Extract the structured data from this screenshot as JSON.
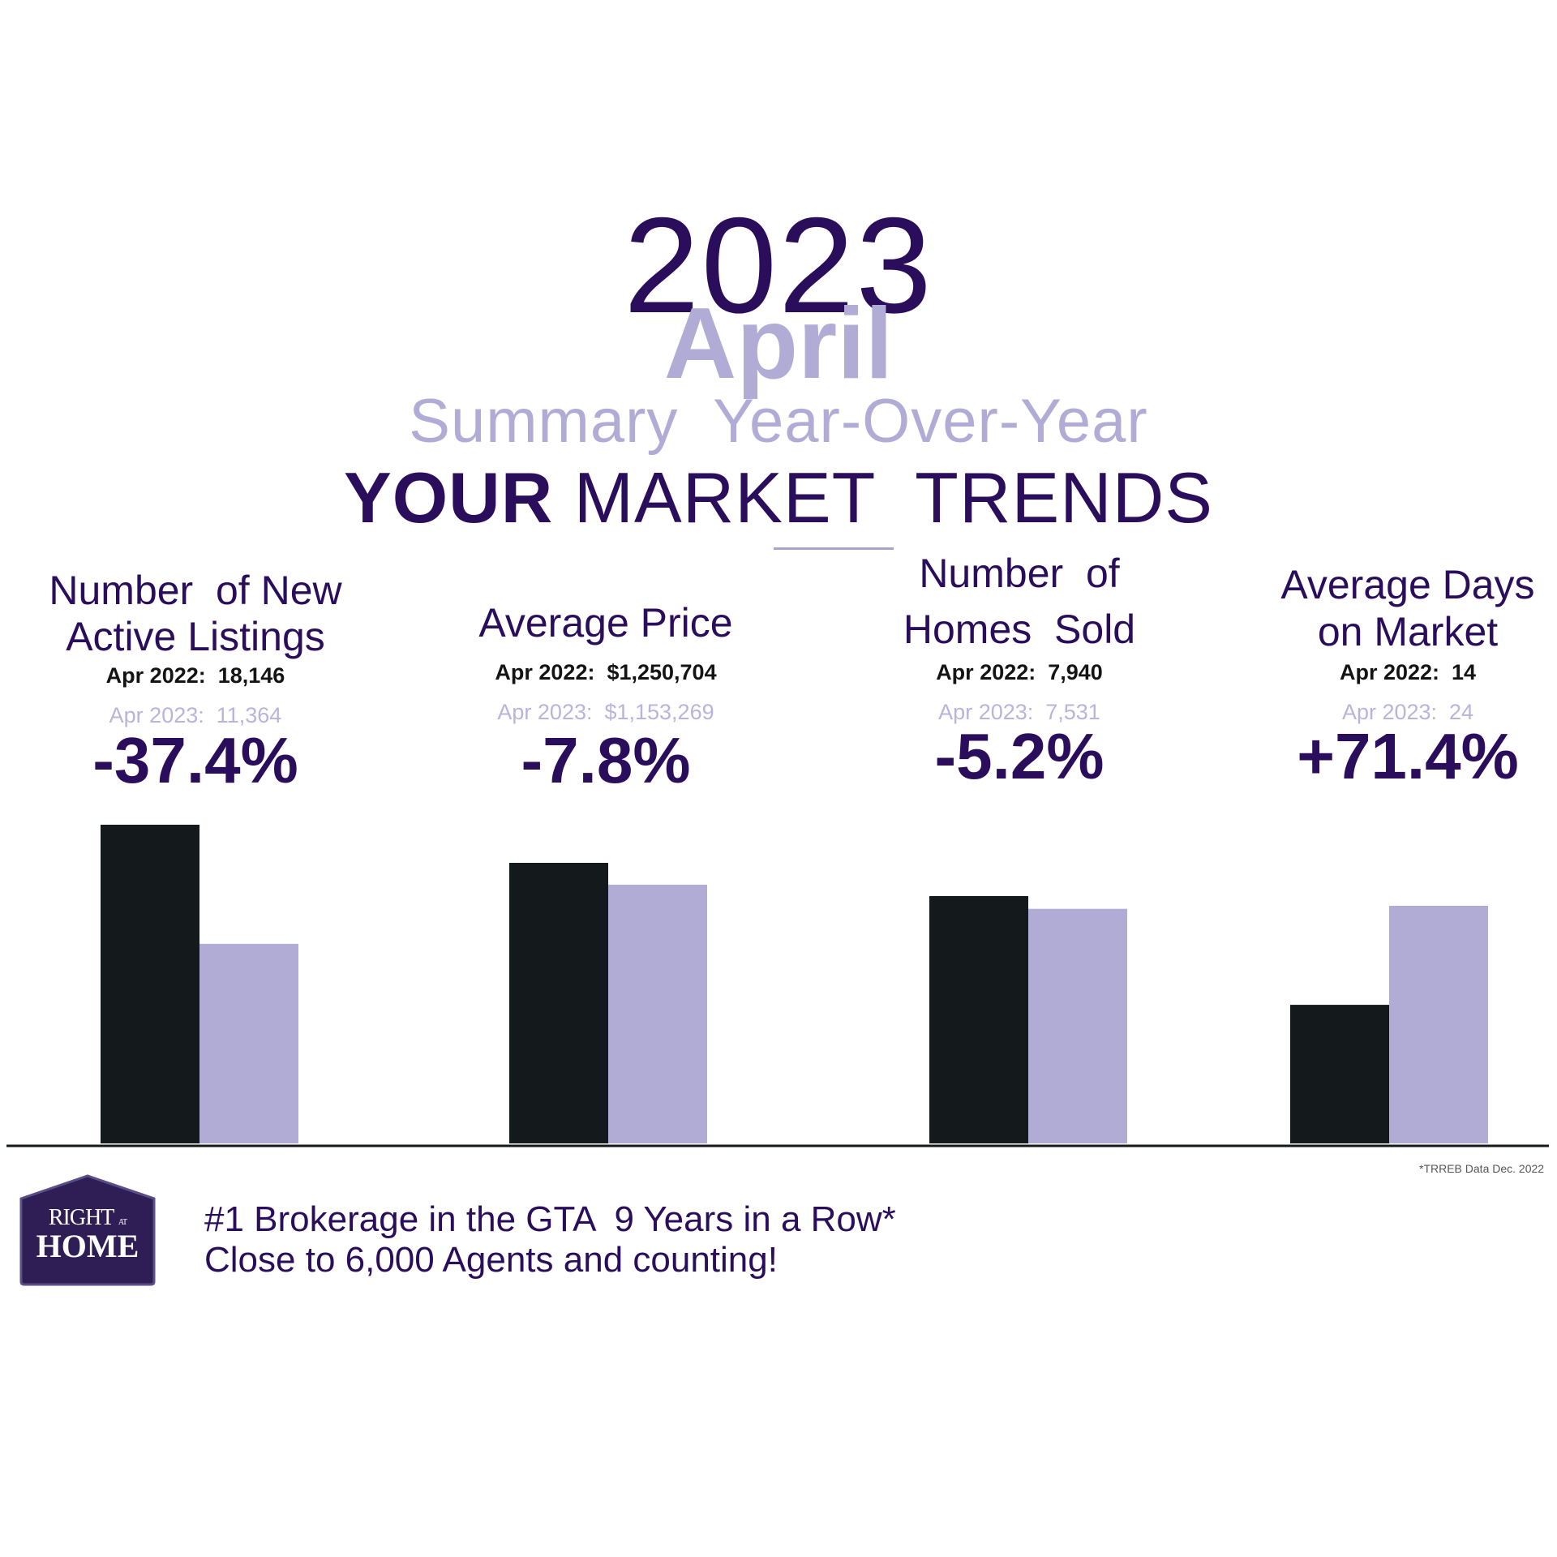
{
  "header": {
    "year": "2023",
    "month": "April",
    "subtitle": "Summary  Year-Over-Year",
    "title_bold": "YOUR",
    "title_regular": " MARKET  TRENDS"
  },
  "colors": {
    "dark_purple": "#2a0e5c",
    "light_purple": "#b1acd6",
    "bar_2022": "#141a1b",
    "bar_2023": "#b1acd6"
  },
  "kpis": [
    {
      "title_line1": "Number  of New",
      "title_line2": "Active Listings",
      "prev_label": "Apr 2022:  18,146",
      "cur_label": "Apr 2023:  11,364",
      "change": "-37.4%"
    },
    {
      "title_line1": "Average Price",
      "title_line2": "",
      "prev_label": "Apr 2022:  $1,250,704",
      "cur_label": "Apr 2023:  $1,153,269",
      "change": "-7.8%"
    },
    {
      "title_line1": "Number  of",
      "title_line2": "Homes  Sold",
      "prev_label": "Apr 2022:  7,940",
      "cur_label": "Apr 2023:  7,531",
      "change": "-5.2%"
    },
    {
      "title_line1": "Average Days",
      "title_line2": "on Market",
      "prev_label": "Apr 2022:  14",
      "cur_label": "Apr 2023:  24",
      "change": "+71.4%"
    }
  ],
  "chart_data": {
    "type": "bar",
    "categories": [
      "Number of New Active Listings",
      "Average Price",
      "Number of Homes Sold",
      "Average Days on Market"
    ],
    "series": [
      {
        "name": "Apr 2022",
        "values": [
          18146,
          1250704,
          7940,
          14
        ]
      },
      {
        "name": "Apr 2023",
        "values": [
          11364,
          1153269,
          7531,
          24
        ]
      }
    ]
  },
  "footnote": "*TRREB Data Dec. 2022",
  "logo": {
    "line1": "RIGHT",
    "line_at": "AT",
    "line2": "HOME"
  },
  "tagline": {
    "line1": "#1 Brokerage in the GTA  9 Years in a Row*",
    "line2": "Close to 6,000 Agents and counting!"
  }
}
